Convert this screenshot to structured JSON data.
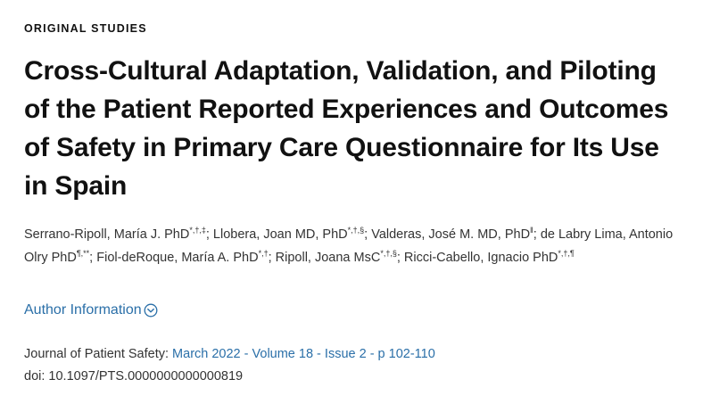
{
  "section_label": "ORIGINAL STUDIES",
  "title": "Cross-Cultural Adaptation, Validation, and Piloting of the Patient Reported Experiences and Outcomes of Safety in Primary Care Questionnaire for Its Use in Spain",
  "authors": [
    {
      "name": "Serrano-Ripoll, María J. PhD",
      "sup": "*,†,‡",
      "sep": "; "
    },
    {
      "name": "Llobera, Joan MD, PhD",
      "sup": "*,†,§",
      "sep": "; "
    },
    {
      "name": "Valderas, José M. MD, PhD",
      "sup": "ǁ",
      "sep": "; "
    },
    {
      "name": "de Labry Lima, Antonio Olry PhD",
      "sup": "¶,**",
      "sep": "; "
    },
    {
      "name": "Fiol-deRoque, María A. PhD",
      "sup": "*,†",
      "sep": "; "
    },
    {
      "name": "Ripoll, Joana MsC",
      "sup": "*,†,§",
      "sep": "; "
    },
    {
      "name": "Ricci-Cabello, Ignacio PhD",
      "sup": "*,†,¶",
      "sep": ""
    }
  ],
  "author_information_label": "Author Information",
  "journal": {
    "label": "Journal of Patient Safety:",
    "issue_link": "March 2022 - Volume 18 - Issue 2 - p 102-110"
  },
  "doi": "doi: 10.1097/PTS.0000000000000819",
  "colors": {
    "link": "#2a6fa8",
    "text": "#333333",
    "heading": "#111111"
  },
  "icons": {
    "author_toggle": "chevron-down-circle-icon"
  }
}
